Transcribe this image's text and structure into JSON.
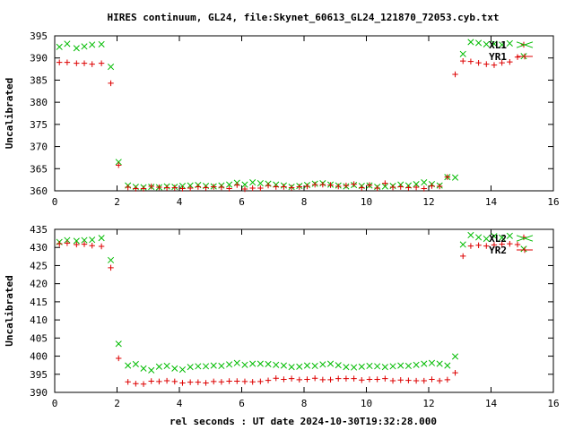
{
  "page": {
    "title": "HIRES continuum, GL24, file:Skynet_60613_GL24_121870_72053.cyb.txt",
    "xlabel": "rel seconds : UT date 2024-10-30T19:32:28.000"
  },
  "colors": {
    "red": "#dd0000",
    "green": "#00bb00"
  },
  "chart_data": [
    {
      "type": "scatter",
      "ylabel": "Uncalibrated",
      "xlim": [
        0,
        16
      ],
      "ylim": [
        360,
        395
      ],
      "xticks": [
        0,
        2,
        4,
        6,
        8,
        10,
        12,
        14,
        16
      ],
      "yticks": [
        360,
        365,
        370,
        375,
        380,
        385,
        390,
        395
      ],
      "legend_position": "top-right",
      "series": [
        {
          "name": "XL1",
          "marker": "x",
          "color": "#00bb00",
          "x": [
            0.15,
            0.4,
            0.7,
            0.95,
            1.2,
            1.5,
            1.8,
            2.05,
            2.35,
            2.6,
            2.85,
            3.1,
            3.35,
            3.6,
            3.85,
            4.1,
            4.35,
            4.6,
            4.85,
            5.1,
            5.35,
            5.6,
            5.85,
            6.1,
            6.35,
            6.6,
            6.85,
            7.1,
            7.35,
            7.6,
            7.85,
            8.1,
            8.35,
            8.6,
            8.85,
            9.1,
            9.35,
            9.6,
            9.85,
            10.1,
            10.35,
            10.6,
            10.85,
            11.1,
            11.35,
            11.6,
            11.85,
            12.1,
            12.35,
            12.6,
            12.85,
            13.1,
            13.35,
            13.6,
            13.85,
            14.1,
            14.35,
            14.6,
            15.05
          ],
          "y": [
            392.5,
            393.2,
            392.2,
            392.6,
            393.0,
            393.1,
            388.0,
            366.5,
            361.2,
            360.9,
            360.8,
            360.9,
            360.8,
            361.0,
            360.9,
            361.1,
            361.2,
            361.3,
            361.1,
            361.0,
            361.2,
            361.4,
            361.8,
            361.4,
            361.9,
            361.7,
            361.6,
            361.4,
            361.2,
            360.9,
            361.1,
            361.3,
            361.6,
            361.7,
            361.4,
            361.2,
            361.0,
            361.3,
            361.1,
            361.2,
            360.9,
            361.0,
            361.1,
            361.4,
            361.2,
            361.5,
            361.9,
            361.5,
            361.2,
            363.1,
            363.0,
            390.9,
            393.6,
            393.4,
            393.1,
            393.2,
            393.0,
            393.3,
            390.4
          ]
        },
        {
          "name": "YR1",
          "marker": "+",
          "color": "#dd0000",
          "x": [
            0.15,
            0.4,
            0.7,
            0.95,
            1.2,
            1.5,
            1.8,
            2.05,
            2.35,
            2.6,
            2.85,
            3.1,
            3.35,
            3.6,
            3.85,
            4.1,
            4.35,
            4.6,
            4.85,
            5.1,
            5.35,
            5.6,
            5.85,
            6.1,
            6.35,
            6.6,
            6.85,
            7.1,
            7.35,
            7.6,
            7.85,
            8.1,
            8.35,
            8.6,
            8.85,
            9.1,
            9.35,
            9.6,
            9.85,
            10.1,
            10.35,
            10.6,
            10.85,
            11.1,
            11.35,
            11.6,
            11.85,
            12.1,
            12.35,
            12.6,
            12.85,
            13.1,
            13.35,
            13.6,
            13.85,
            14.1,
            14.35,
            14.6,
            14.85,
            15.05
          ],
          "y": [
            389.0,
            389.0,
            388.8,
            388.8,
            388.6,
            388.8,
            384.3,
            365.8,
            360.8,
            360.5,
            360.5,
            361.0,
            360.8,
            360.7,
            360.7,
            360.5,
            360.6,
            360.9,
            360.7,
            360.9,
            360.8,
            360.5,
            361.3,
            360.4,
            360.6,
            360.6,
            361.2,
            360.9,
            360.9,
            360.7,
            360.9,
            361.0,
            361.4,
            361.4,
            361.3,
            361.0,
            361.2,
            361.5,
            360.7,
            361.3,
            360.6,
            361.7,
            360.8,
            360.9,
            360.7,
            360.8,
            360.5,
            361.1,
            361.0,
            363.1,
            386.3,
            389.3,
            389.2,
            388.9,
            388.6,
            388.4,
            388.9,
            389.1,
            390.2,
            393.0
          ]
        }
      ]
    },
    {
      "type": "scatter",
      "ylabel": "Uncalibrated",
      "xlim": [
        0,
        16
      ],
      "ylim": [
        390,
        435
      ],
      "xticks": [
        0,
        2,
        4,
        6,
        8,
        10,
        12,
        14,
        16
      ],
      "yticks": [
        390,
        395,
        400,
        405,
        410,
        415,
        420,
        425,
        430,
        435
      ],
      "legend_position": "top-right",
      "series": [
        {
          "name": "XL2",
          "marker": "x",
          "color": "#00bb00",
          "x": [
            0.15,
            0.4,
            0.7,
            0.95,
            1.2,
            1.5,
            1.8,
            2.05,
            2.35,
            2.6,
            2.85,
            3.1,
            3.35,
            3.6,
            3.85,
            4.1,
            4.35,
            4.6,
            4.85,
            5.1,
            5.35,
            5.6,
            5.85,
            6.1,
            6.35,
            6.6,
            6.85,
            7.1,
            7.35,
            7.6,
            7.85,
            8.1,
            8.35,
            8.6,
            8.85,
            9.1,
            9.35,
            9.6,
            9.85,
            10.1,
            10.35,
            10.6,
            10.85,
            11.1,
            11.35,
            11.6,
            11.85,
            12.1,
            12.35,
            12.6,
            12.85,
            13.1,
            13.35,
            13.6,
            13.85,
            14.1,
            14.35,
            14.6,
            15.05
          ],
          "y": [
            431.5,
            432.0,
            431.8,
            432.0,
            432.1,
            432.6,
            426.5,
            403.4,
            397.4,
            397.8,
            396.6,
            396.1,
            397.1,
            397.3,
            396.6,
            396.3,
            397.0,
            397.2,
            397.2,
            397.4,
            397.3,
            397.7,
            398.1,
            397.6,
            397.9,
            397.9,
            397.8,
            397.6,
            397.4,
            397.0,
            397.1,
            397.4,
            397.3,
            397.7,
            397.9,
            397.5,
            397.0,
            396.9,
            397.1,
            397.3,
            397.2,
            397.0,
            397.2,
            397.4,
            397.3,
            397.6,
            397.9,
            398.1,
            397.9,
            397.4,
            399.9,
            430.8,
            433.4,
            432.8,
            432.4,
            433.1,
            432.7,
            433.2,
            429.6
          ]
        },
        {
          "name": "YR2",
          "marker": "+",
          "color": "#dd0000",
          "x": [
            0.15,
            0.4,
            0.7,
            0.95,
            1.2,
            1.5,
            1.8,
            2.05,
            2.35,
            2.6,
            2.85,
            3.1,
            3.35,
            3.6,
            3.85,
            4.1,
            4.35,
            4.6,
            4.85,
            5.1,
            5.35,
            5.6,
            5.85,
            6.1,
            6.35,
            6.6,
            6.85,
            7.1,
            7.35,
            7.6,
            7.85,
            8.1,
            8.35,
            8.6,
            8.85,
            9.1,
            9.35,
            9.6,
            9.85,
            10.1,
            10.35,
            10.6,
            10.85,
            11.1,
            11.35,
            11.6,
            11.85,
            12.1,
            12.35,
            12.6,
            12.85,
            13.1,
            13.35,
            13.6,
            13.85,
            14.1,
            14.35,
            14.6,
            14.85,
            15.05
          ],
          "y": [
            431.0,
            431.2,
            430.8,
            430.9,
            430.5,
            430.3,
            424.4,
            399.4,
            392.9,
            392.4,
            392.3,
            393.1,
            393.0,
            393.2,
            393.0,
            392.6,
            392.8,
            392.8,
            392.6,
            393.0,
            392.9,
            393.1,
            393.1,
            393.0,
            392.9,
            393.0,
            393.3,
            393.9,
            393.6,
            393.8,
            393.5,
            393.6,
            393.9,
            393.5,
            393.5,
            393.8,
            393.8,
            393.8,
            393.4,
            393.6,
            393.6,
            393.8,
            393.2,
            393.4,
            393.3,
            393.2,
            393.2,
            393.6,
            393.2,
            393.5,
            395.4,
            427.6,
            430.4,
            430.6,
            430.4,
            430.7,
            430.9,
            431.0,
            430.8,
            432.8
          ]
        }
      ]
    }
  ]
}
